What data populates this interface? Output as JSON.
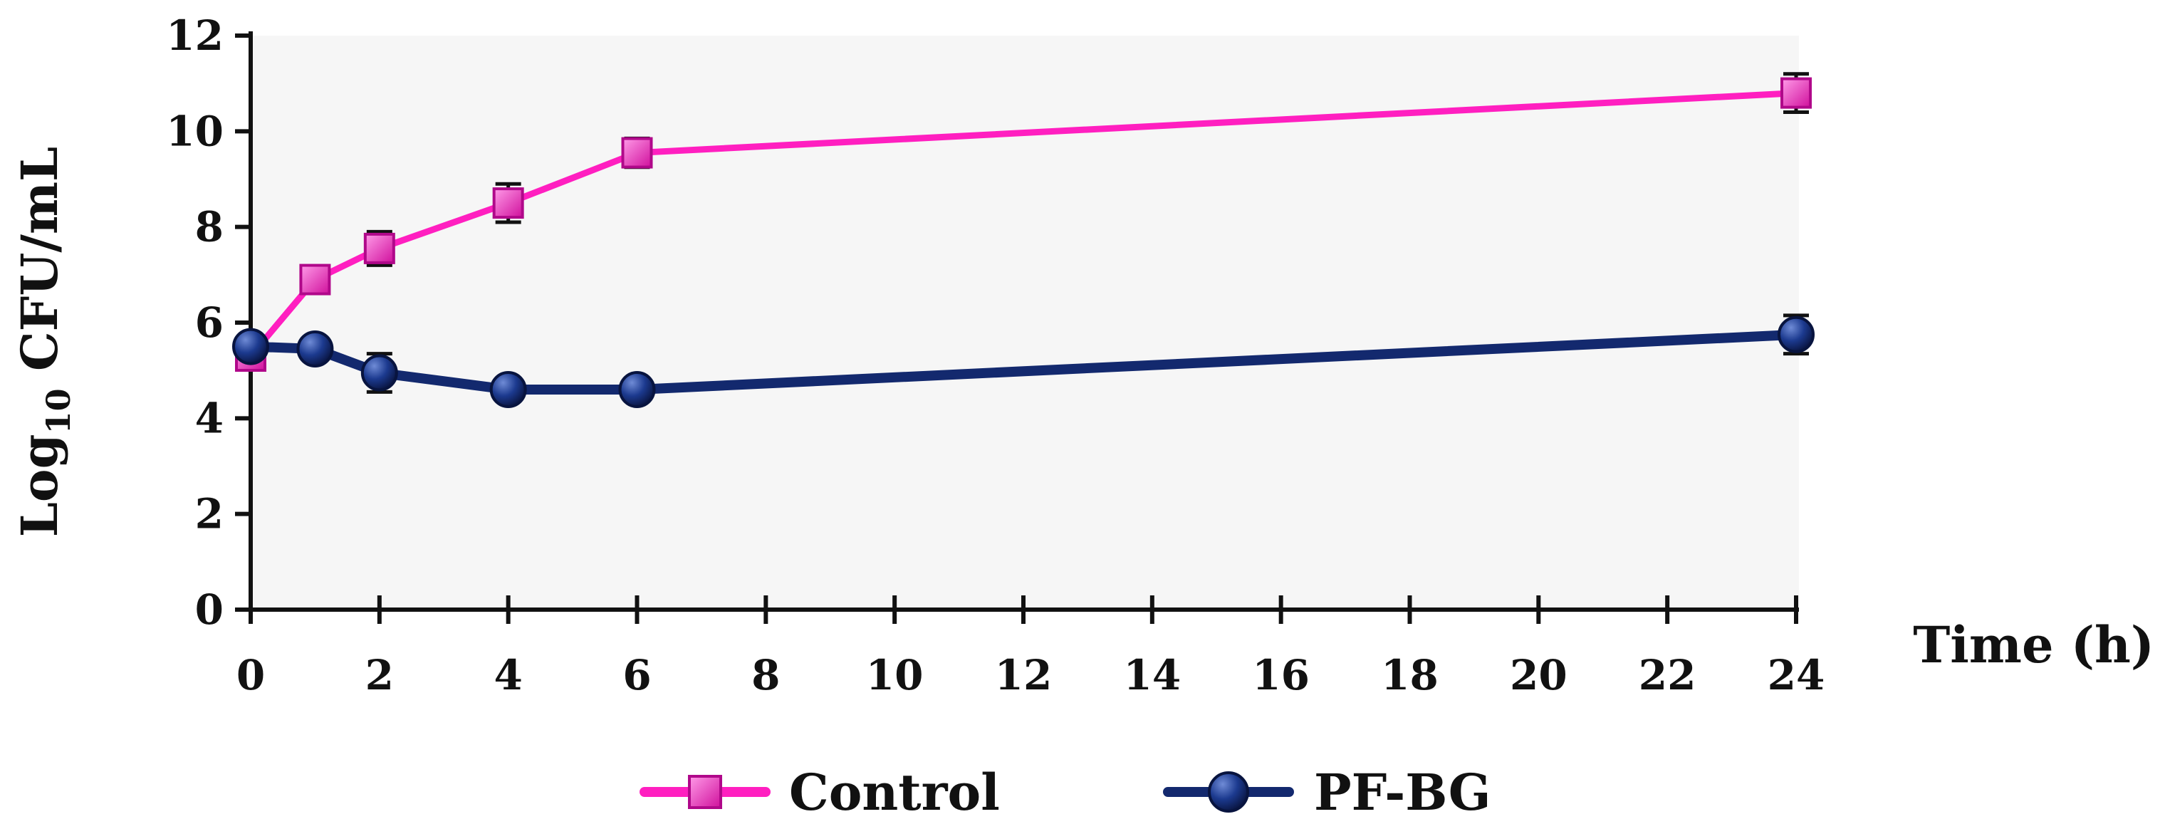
{
  "chart_data": {
    "type": "line",
    "title": "",
    "xlabel": "Time (h)",
    "ylabel": {
      "prefix": "Log",
      "subscript": "10",
      "suffix": " CFU/mL"
    },
    "xlim": [
      0,
      24
    ],
    "ylim": [
      0,
      12
    ],
    "xticks": [
      0,
      2,
      4,
      6,
      8,
      10,
      12,
      14,
      16,
      18,
      20,
      22,
      24
    ],
    "yticks": [
      0,
      2,
      4,
      6,
      8,
      10,
      12
    ],
    "grid": false,
    "legend_position": "bottom",
    "x": [
      0,
      1,
      2,
      4,
      6,
      24
    ],
    "series": [
      {
        "name": "Control",
        "color": "#ff1fc0",
        "marker": "square",
        "values": [
          5.3,
          6.9,
          7.55,
          8.5,
          9.55,
          10.8
        ],
        "errors": [
          0.15,
          0.15,
          0.35,
          0.4,
          0.3,
          0.4
        ]
      },
      {
        "name": "PF-BG",
        "color": "#13296e",
        "marker": "circle",
        "values": [
          5.5,
          5.45,
          4.95,
          4.6,
          4.6,
          5.75
        ],
        "errors": [
          0.15,
          0.15,
          0.4,
          0.2,
          0.15,
          0.4
        ]
      }
    ]
  }
}
